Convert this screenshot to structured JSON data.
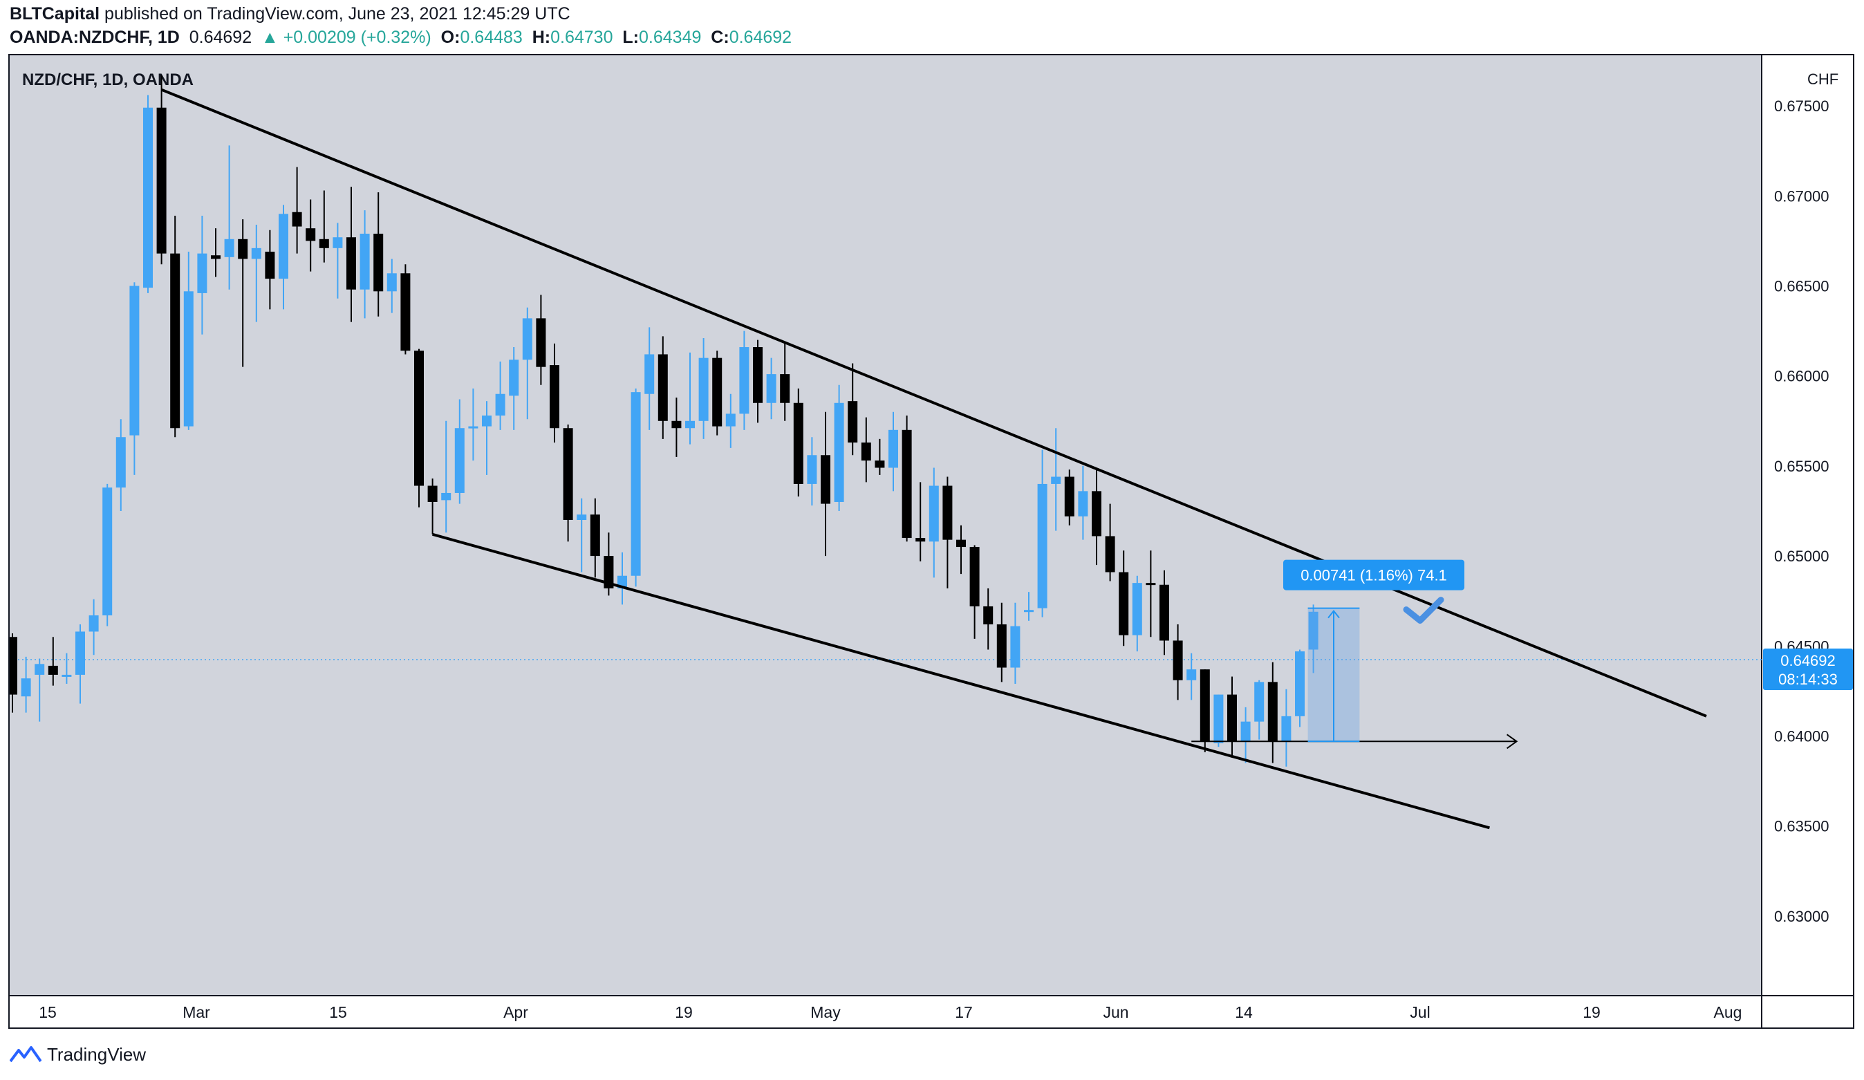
{
  "header": {
    "author": "BLTCapital",
    "published": "published on TradingView.com, June 23, 2021 12:45:29 UTC",
    "symbol": "OANDA:NZDCHF, 1D",
    "last": "0.64692",
    "change": "▲ +0.00209 (+0.32%)",
    "o_label": "O:",
    "o_value": "0.64483",
    "h_label": "H:",
    "h_value": "0.64730",
    "l_label": "L:",
    "l_value": "0.64349",
    "c_label": "C:",
    "c_value": "0.64692"
  },
  "footer": {
    "brand": "TradingView"
  },
  "colors": {
    "background": "#d1d4dc",
    "bull": "#42a5f5",
    "bear": "#000000",
    "accent": "#2196f3",
    "text": "#131722"
  },
  "chart_data": {
    "type": "candlestick",
    "title": "NZD/CHF, 1D, OANDA",
    "currency": "CHF",
    "ylim": [
      0.6265,
      0.678
    ],
    "y_ticks": [
      "0.67500",
      "0.67000",
      "0.66500",
      "0.66000",
      "0.65500",
      "0.65000",
      "0.64500",
      "0.64000",
      "0.63500",
      "0.63000"
    ],
    "x_ticks": [
      "15",
      "Mar",
      "15",
      "Apr",
      "19",
      "May",
      "17",
      "Jun",
      "14",
      "Jul",
      "19",
      "Aug"
    ],
    "last_price": "0.64692",
    "countdown": "08:14:33",
    "measure_label": "0.00741 (1.16%) 74.1",
    "candles": [
      {
        "o": 0.6455,
        "h": 0.6457,
        "l": 0.6413,
        "c": 0.6423
      },
      {
        "o": 0.6422,
        "h": 0.6444,
        "l": 0.6413,
        "c": 0.6432
      },
      {
        "o": 0.6434,
        "h": 0.6443,
        "l": 0.6408,
        "c": 0.644
      },
      {
        "o": 0.6439,
        "h": 0.6455,
        "l": 0.6428,
        "c": 0.6434
      },
      {
        "o": 0.6434,
        "h": 0.6446,
        "l": 0.6429,
        "c": 0.6434
      },
      {
        "o": 0.6434,
        "h": 0.6462,
        "l": 0.6418,
        "c": 0.6458
      },
      {
        "o": 0.6458,
        "h": 0.6476,
        "l": 0.6445,
        "c": 0.6467
      },
      {
        "o": 0.6467,
        "h": 0.654,
        "l": 0.6461,
        "c": 0.6538
      },
      {
        "o": 0.6538,
        "h": 0.6576,
        "l": 0.6525,
        "c": 0.6566
      },
      {
        "o": 0.6567,
        "h": 0.6652,
        "l": 0.6545,
        "c": 0.665
      },
      {
        "o": 0.6649,
        "h": 0.6756,
        "l": 0.6646,
        "c": 0.6749
      },
      {
        "o": 0.6749,
        "h": 0.6767,
        "l": 0.6662,
        "c": 0.6668
      },
      {
        "o": 0.6668,
        "h": 0.6689,
        "l": 0.6566,
        "c": 0.6571
      },
      {
        "o": 0.6572,
        "h": 0.6669,
        "l": 0.657,
        "c": 0.6647
      },
      {
        "o": 0.6646,
        "h": 0.6689,
        "l": 0.6623,
        "c": 0.6668
      },
      {
        "o": 0.6667,
        "h": 0.6682,
        "l": 0.6655,
        "c": 0.6665
      },
      {
        "o": 0.6666,
        "h": 0.6728,
        "l": 0.6648,
        "c": 0.6676
      },
      {
        "o": 0.6676,
        "h": 0.6687,
        "l": 0.6605,
        "c": 0.6665
      },
      {
        "o": 0.6665,
        "h": 0.6684,
        "l": 0.663,
        "c": 0.6671
      },
      {
        "o": 0.6669,
        "h": 0.6681,
        "l": 0.6637,
        "c": 0.6654
      },
      {
        "o": 0.6654,
        "h": 0.6695,
        "l": 0.6637,
        "c": 0.669
      },
      {
        "o": 0.6691,
        "h": 0.6716,
        "l": 0.6668,
        "c": 0.6683
      },
      {
        "o": 0.6682,
        "h": 0.6698,
        "l": 0.6658,
        "c": 0.6675
      },
      {
        "o": 0.6676,
        "h": 0.6703,
        "l": 0.6663,
        "c": 0.6671
      },
      {
        "o": 0.6671,
        "h": 0.6685,
        "l": 0.6643,
        "c": 0.6677
      },
      {
        "o": 0.6677,
        "h": 0.6705,
        "l": 0.663,
        "c": 0.6648
      },
      {
        "o": 0.6648,
        "h": 0.6692,
        "l": 0.6632,
        "c": 0.6679
      },
      {
        "o": 0.6679,
        "h": 0.6702,
        "l": 0.6633,
        "c": 0.6647
      },
      {
        "o": 0.6647,
        "h": 0.6665,
        "l": 0.6635,
        "c": 0.6657
      },
      {
        "o": 0.6657,
        "h": 0.6662,
        "l": 0.6612,
        "c": 0.6614
      },
      {
        "o": 0.6614,
        "h": 0.6615,
        "l": 0.6527,
        "c": 0.6539
      },
      {
        "o": 0.6539,
        "h": 0.6543,
        "l": 0.6512,
        "c": 0.653
      },
      {
        "o": 0.6531,
        "h": 0.6575,
        "l": 0.6513,
        "c": 0.6535
      },
      {
        "o": 0.6535,
        "h": 0.6587,
        "l": 0.6529,
        "c": 0.6571
      },
      {
        "o": 0.6571,
        "h": 0.6593,
        "l": 0.6553,
        "c": 0.6572
      },
      {
        "o": 0.6572,
        "h": 0.6586,
        "l": 0.6545,
        "c": 0.6578
      },
      {
        "o": 0.6578,
        "h": 0.6608,
        "l": 0.657,
        "c": 0.659
      },
      {
        "o": 0.6589,
        "h": 0.6616,
        "l": 0.657,
        "c": 0.6609
      },
      {
        "o": 0.6609,
        "h": 0.6638,
        "l": 0.6576,
        "c": 0.6632
      },
      {
        "o": 0.6632,
        "h": 0.6645,
        "l": 0.6595,
        "c": 0.6605
      },
      {
        "o": 0.6606,
        "h": 0.6618,
        "l": 0.6563,
        "c": 0.6571
      },
      {
        "o": 0.6571,
        "h": 0.6573,
        "l": 0.6508,
        "c": 0.652
      },
      {
        "o": 0.652,
        "h": 0.6532,
        "l": 0.6491,
        "c": 0.6523
      },
      {
        "o": 0.6523,
        "h": 0.6532,
        "l": 0.6488,
        "c": 0.65
      },
      {
        "o": 0.65,
        "h": 0.6513,
        "l": 0.6478,
        "c": 0.6482
      },
      {
        "o": 0.6482,
        "h": 0.6502,
        "l": 0.6473,
        "c": 0.6489
      },
      {
        "o": 0.6489,
        "h": 0.6593,
        "l": 0.6483,
        "c": 0.6591
      },
      {
        "o": 0.659,
        "h": 0.6627,
        "l": 0.657,
        "c": 0.6612
      },
      {
        "o": 0.6612,
        "h": 0.6622,
        "l": 0.6565,
        "c": 0.6575
      },
      {
        "o": 0.6575,
        "h": 0.6588,
        "l": 0.6555,
        "c": 0.6571
      },
      {
        "o": 0.6571,
        "h": 0.6613,
        "l": 0.6562,
        "c": 0.6575
      },
      {
        "o": 0.6575,
        "h": 0.6621,
        "l": 0.6565,
        "c": 0.661
      },
      {
        "o": 0.661,
        "h": 0.6614,
        "l": 0.6567,
        "c": 0.6572
      },
      {
        "o": 0.6572,
        "h": 0.659,
        "l": 0.656,
        "c": 0.6579
      },
      {
        "o": 0.6579,
        "h": 0.6625,
        "l": 0.657,
        "c": 0.6616
      },
      {
        "o": 0.6616,
        "h": 0.662,
        "l": 0.6574,
        "c": 0.6585
      },
      {
        "o": 0.6585,
        "h": 0.661,
        "l": 0.6576,
        "c": 0.6601
      },
      {
        "o": 0.6601,
        "h": 0.6619,
        "l": 0.6575,
        "c": 0.6585
      },
      {
        "o": 0.6585,
        "h": 0.6593,
        "l": 0.6533,
        "c": 0.654
      },
      {
        "o": 0.654,
        "h": 0.6566,
        "l": 0.6528,
        "c": 0.6556
      },
      {
        "o": 0.6556,
        "h": 0.658,
        "l": 0.65,
        "c": 0.6529
      },
      {
        "o": 0.653,
        "h": 0.6595,
        "l": 0.6525,
        "c": 0.6585
      },
      {
        "o": 0.6586,
        "h": 0.6607,
        "l": 0.6556,
        "c": 0.6563
      },
      {
        "o": 0.6563,
        "h": 0.6577,
        "l": 0.6541,
        "c": 0.6553
      },
      {
        "o": 0.6553,
        "h": 0.6565,
        "l": 0.6545,
        "c": 0.6549
      },
      {
        "o": 0.6549,
        "h": 0.658,
        "l": 0.6536,
        "c": 0.657
      },
      {
        "o": 0.657,
        "h": 0.6578,
        "l": 0.6508,
        "c": 0.651
      },
      {
        "o": 0.651,
        "h": 0.6541,
        "l": 0.6497,
        "c": 0.6508
      },
      {
        "o": 0.6508,
        "h": 0.6549,
        "l": 0.6488,
        "c": 0.6539
      },
      {
        "o": 0.6539,
        "h": 0.6544,
        "l": 0.6482,
        "c": 0.6509
      },
      {
        "o": 0.6509,
        "h": 0.6517,
        "l": 0.649,
        "c": 0.6505
      },
      {
        "o": 0.6505,
        "h": 0.6506,
        "l": 0.6454,
        "c": 0.6472
      },
      {
        "o": 0.6472,
        "h": 0.6482,
        "l": 0.6448,
        "c": 0.6462
      },
      {
        "o": 0.6462,
        "h": 0.6474,
        "l": 0.643,
        "c": 0.6438
      },
      {
        "o": 0.6438,
        "h": 0.6474,
        "l": 0.6429,
        "c": 0.6461
      },
      {
        "o": 0.647,
        "h": 0.648,
        "l": 0.6464,
        "c": 0.647
      },
      {
        "o": 0.6471,
        "h": 0.6559,
        "l": 0.6466,
        "c": 0.654
      },
      {
        "o": 0.654,
        "h": 0.6571,
        "l": 0.6514,
        "c": 0.6544
      },
      {
        "o": 0.6544,
        "h": 0.6548,
        "l": 0.6517,
        "c": 0.6522
      },
      {
        "o": 0.6522,
        "h": 0.655,
        "l": 0.6509,
        "c": 0.6536
      },
      {
        "o": 0.6536,
        "h": 0.6549,
        "l": 0.6495,
        "c": 0.6511
      },
      {
        "o": 0.6511,
        "h": 0.6529,
        "l": 0.6486,
        "c": 0.6491
      },
      {
        "o": 0.6491,
        "h": 0.6503,
        "l": 0.645,
        "c": 0.6456
      },
      {
        "o": 0.6456,
        "h": 0.6489,
        "l": 0.6447,
        "c": 0.6485
      },
      {
        "o": 0.6485,
        "h": 0.6503,
        "l": 0.6455,
        "c": 0.6484
      },
      {
        "o": 0.6484,
        "h": 0.6492,
        "l": 0.6445,
        "c": 0.6453
      },
      {
        "o": 0.6453,
        "h": 0.6462,
        "l": 0.642,
        "c": 0.6431
      },
      {
        "o": 0.6431,
        "h": 0.6446,
        "l": 0.642,
        "c": 0.6437
      },
      {
        "o": 0.6437,
        "h": 0.6437,
        "l": 0.6391,
        "c": 0.6397
      },
      {
        "o": 0.6396,
        "h": 0.6423,
        "l": 0.6394,
        "c": 0.6423
      },
      {
        "o": 0.6423,
        "h": 0.6433,
        "l": 0.6388,
        "c": 0.6397
      },
      {
        "o": 0.6397,
        "h": 0.6416,
        "l": 0.6385,
        "c": 0.6408
      },
      {
        "o": 0.6408,
        "h": 0.6431,
        "l": 0.6398,
        "c": 0.643
      },
      {
        "o": 0.643,
        "h": 0.6441,
        "l": 0.6385,
        "c": 0.6397
      },
      {
        "o": 0.6397,
        "h": 0.6426,
        "l": 0.6383,
        "c": 0.6411
      },
      {
        "o": 0.6411,
        "h": 0.6448,
        "l": 0.6405,
        "c": 0.6447
      },
      {
        "o": 0.6448,
        "h": 0.6473,
        "l": 0.6435,
        "c": 0.6469
      }
    ],
    "lines": [
      {
        "name": "upper-trendline",
        "p1": [
          11,
          0.6759
        ],
        "p2": [
          125,
          0.6411
        ]
      },
      {
        "name": "lower-trendline",
        "p1": [
          31,
          0.6512
        ],
        "p2": [
          109,
          0.6349
        ]
      },
      {
        "name": "support-arrow",
        "p1": [
          87,
          0.6397
        ],
        "p2": [
          111,
          0.6397
        ]
      }
    ],
    "measure_range": {
      "from": 0.6397,
      "to": 0.6471,
      "x_start": 96,
      "x_end": 99
    }
  }
}
